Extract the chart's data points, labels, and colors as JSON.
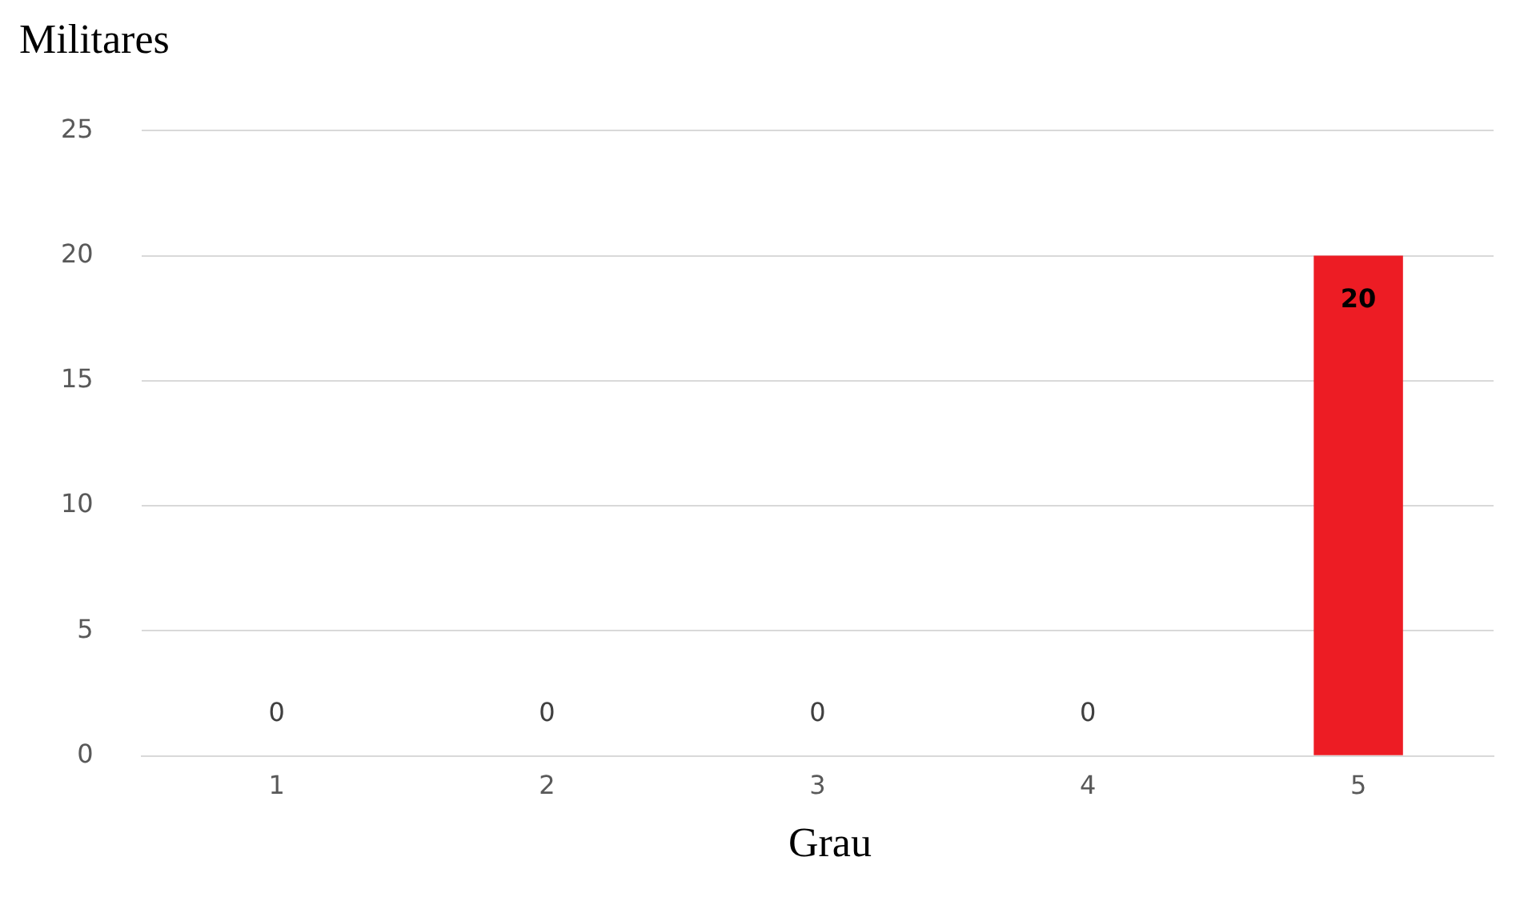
{
  "chart_data": {
    "type": "bar",
    "xlabel": "Grau",
    "ylabel": "Militares",
    "categories": [
      "1",
      "2",
      "3",
      "4",
      "5"
    ],
    "values": [
      0,
      0,
      0,
      0,
      20
    ],
    "color": "#ed1c24",
    "ylim": [
      0,
      25
    ],
    "yticks": [
      0,
      5,
      10,
      15,
      20,
      25
    ],
    "grid": "y",
    "data_labels": true
  }
}
